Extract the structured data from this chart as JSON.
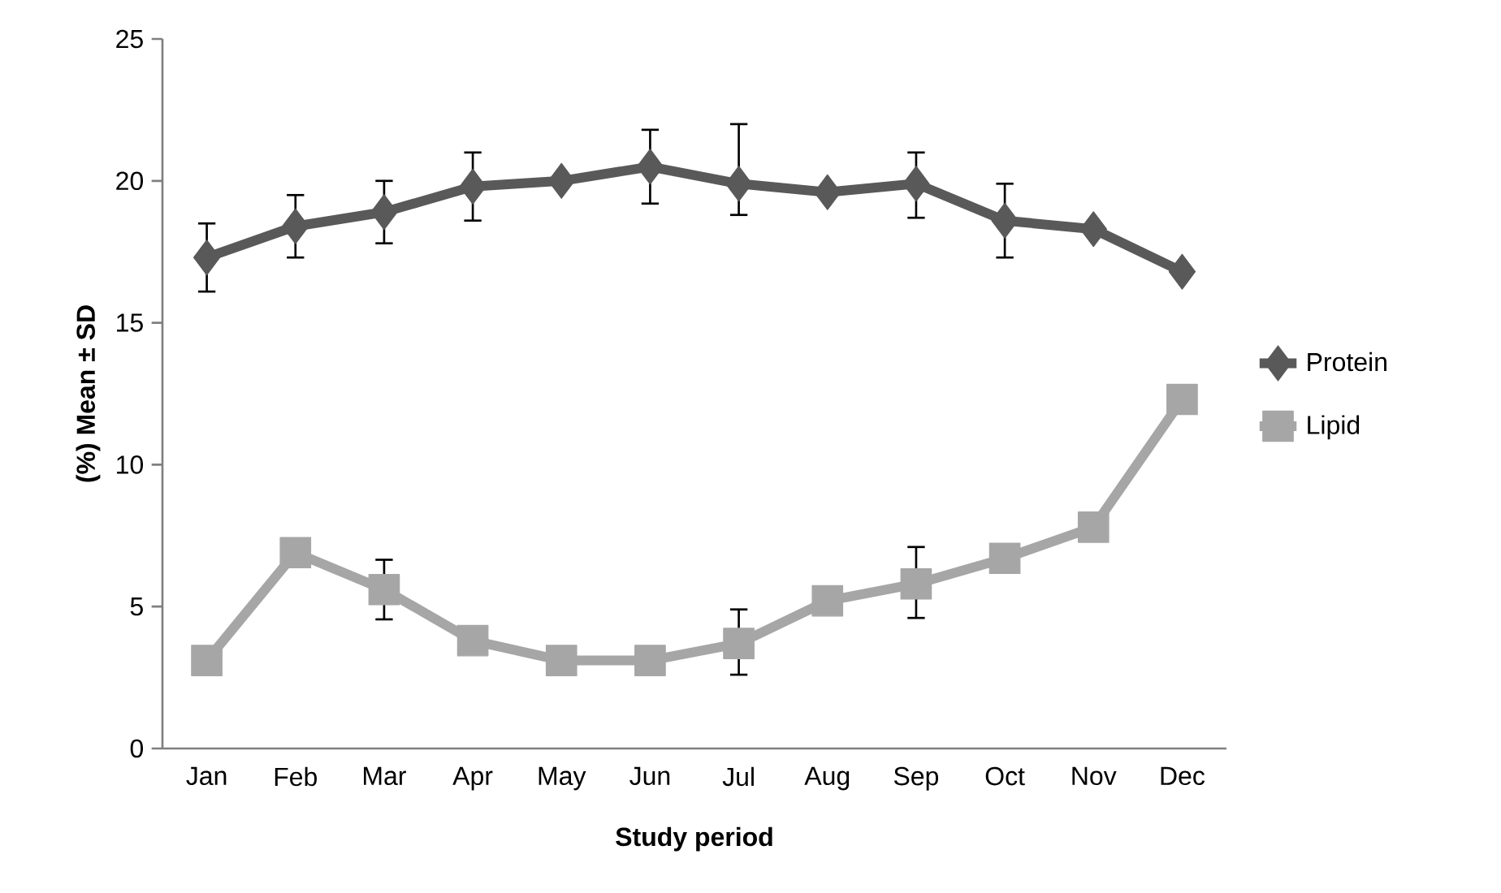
{
  "chart_data": {
    "type": "line",
    "xlabel": "Study period",
    "ylabel": "(%) Mean ± SD",
    "categories": [
      "Jan",
      "Feb",
      "Mar",
      "Apr",
      "May",
      "Jun",
      "Jul",
      "Aug",
      "Sep",
      "Oct",
      "Nov",
      "Dec"
    ],
    "series": [
      {
        "name": "Protein",
        "color": "#595959",
        "marker": "diamond",
        "values": [
          17.3,
          18.4,
          18.9,
          19.8,
          20.0,
          20.5,
          19.9,
          19.6,
          19.9,
          18.6,
          18.3,
          16.8
        ],
        "errors": [
          1.2,
          1.1,
          1.1,
          1.2,
          null,
          1.3,
          [
            18.8,
            22.0
          ],
          null,
          [
            18.7,
            21.0
          ],
          1.3,
          null,
          null
        ]
      },
      {
        "name": "Lipid",
        "color": "#a6a6a6",
        "marker": "square",
        "values": [
          3.1,
          6.9,
          5.6,
          3.8,
          3.1,
          3.1,
          3.7,
          5.2,
          5.8,
          6.7,
          7.8,
          12.3
        ],
        "errors": [
          null,
          null,
          1.05,
          null,
          null,
          null,
          [
            2.6,
            4.9
          ],
          null,
          [
            4.6,
            7.1
          ],
          null,
          null,
          null
        ]
      }
    ],
    "ylim": [
      0,
      25
    ],
    "yticks": [
      0,
      5,
      10,
      15,
      20,
      25
    ],
    "legend": "right"
  }
}
